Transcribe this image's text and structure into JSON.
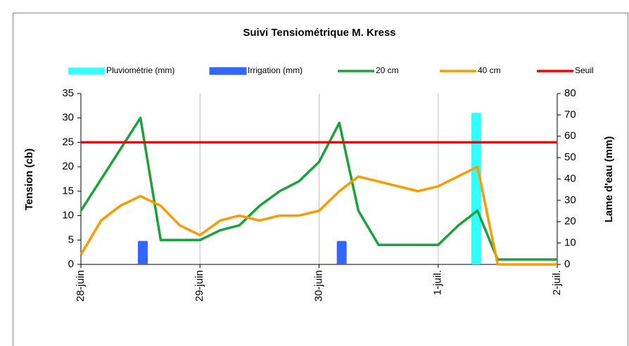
{
  "chart_data": {
    "type": "line",
    "title": "Suivi Tensiométrique M. Kress",
    "ylabel": "Tension (cb)",
    "y2label": "Lame d'eau (mm)",
    "xlim": [
      0,
      4
    ],
    "xticks": [
      {
        "value": 0,
        "label": "28-juin"
      },
      {
        "value": 1,
        "label": "29-juin"
      },
      {
        "value": 2,
        "label": "30-juin"
      },
      {
        "value": 3,
        "label": "1-juil."
      },
      {
        "value": 4,
        "label": "2-juil."
      }
    ],
    "ylim": [
      0,
      35
    ],
    "yticks": [
      0,
      5,
      10,
      15,
      20,
      25,
      30,
      35
    ],
    "y2lim": [
      0,
      80
    ],
    "y2ticks": [
      0,
      10,
      20,
      30,
      40,
      50,
      60,
      70,
      80
    ],
    "grid": "x",
    "legend": "top",
    "series": [
      {
        "name": "Pluviométrie (mm)",
        "type": "bar",
        "axis": "y2",
        "color": "#33ffff",
        "x": [
          3.32
        ],
        "values": [
          71
        ]
      },
      {
        "name": "Irrigation (mm)",
        "type": "bar",
        "axis": "y2",
        "color": "#3366ff",
        "x": [
          0.52,
          2.19
        ],
        "values": [
          11,
          11
        ]
      },
      {
        "name": "20 cm",
        "type": "line",
        "color": "#1aa33a",
        "x": [
          0,
          0.5,
          0.67,
          1,
          1.17,
          1.33,
          1.5,
          1.67,
          1.83,
          2,
          2.17,
          2.33,
          2.5,
          3,
          3.17,
          3.33,
          3.5,
          4
        ],
        "values": [
          11,
          30,
          5,
          5,
          7,
          8,
          12,
          15,
          17,
          21,
          29,
          11,
          4,
          4,
          8,
          11,
          1,
          1
        ]
      },
      {
        "name": "40 cm",
        "type": "line",
        "color": "#ff9900",
        "x": [
          0,
          0.17,
          0.33,
          0.5,
          0.67,
          0.83,
          1,
          1.17,
          1.33,
          1.5,
          1.67,
          1.83,
          2,
          2.17,
          2.33,
          2.83,
          3,
          3.33,
          3.5,
          4
        ],
        "values": [
          2,
          9,
          12,
          14,
          12,
          8,
          6,
          9,
          10,
          9,
          10,
          10,
          11,
          15,
          18,
          15,
          16,
          20,
          0,
          0
        ]
      },
      {
        "name": "Seuil",
        "type": "line",
        "color": "#ff0000",
        "x": [
          0,
          4
        ],
        "values": [
          25,
          25
        ]
      }
    ]
  }
}
